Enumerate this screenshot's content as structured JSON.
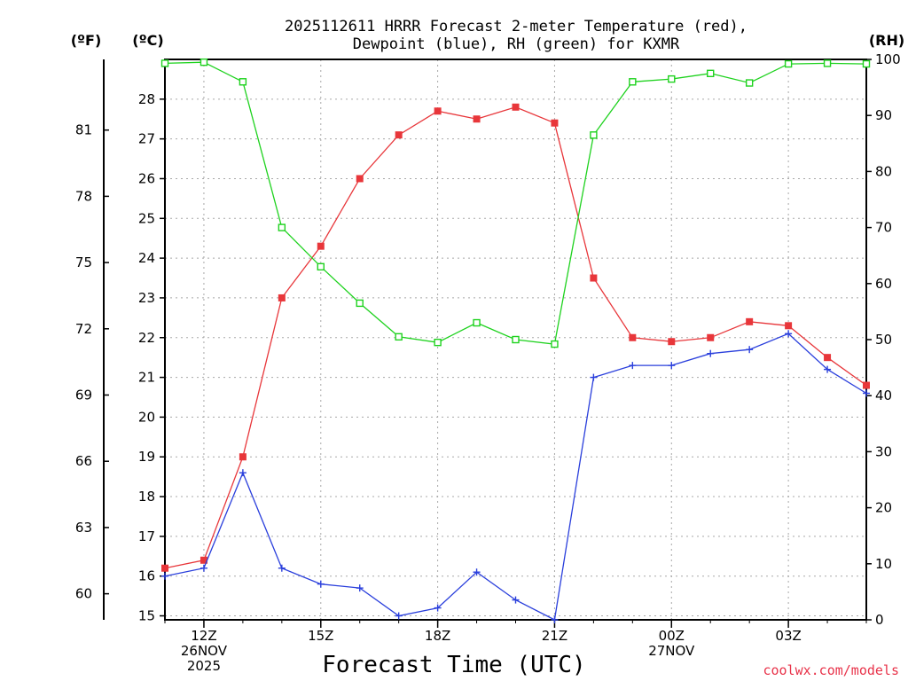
{
  "chart_data": {
    "type": "line",
    "title_line1": "2025112611 HRRR Forecast 2-meter Temperature (red),",
    "title_line2": "Dewpoint (blue), RH (green) for KXMR",
    "units": {
      "f": "(ºF)",
      "c": "(ºC)",
      "rh": "(RH)"
    },
    "xlabel": "Forecast Time (UTC)",
    "credit": "coolwx.com/models",
    "hours": [
      11,
      12,
      13,
      14,
      15,
      16,
      17,
      18,
      19,
      20,
      21,
      22,
      23,
      24,
      25,
      26,
      27,
      28,
      29
    ],
    "x_ticks": [
      {
        "hour": 12,
        "lines": [
          "12Z",
          "26NOV",
          "2025"
        ]
      },
      {
        "hour": 15,
        "lines": [
          "15Z"
        ]
      },
      {
        "hour": 18,
        "lines": [
          "18Z"
        ]
      },
      {
        "hour": 21,
        "lines": [
          "21Z"
        ]
      },
      {
        "hour": 24,
        "lines": [
          "00Z",
          "27NOV"
        ]
      },
      {
        "hour": 27,
        "lines": [
          "03Z"
        ]
      }
    ],
    "celsius_axis": {
      "min": 14.9,
      "max": 29.0,
      "ticks": [
        15,
        16,
        17,
        18,
        19,
        20,
        21,
        22,
        23,
        24,
        25,
        26,
        27,
        28
      ]
    },
    "fahrenheit_ticks": [
      60,
      63,
      66,
      69,
      72,
      75,
      78,
      81
    ],
    "rh_axis": {
      "min": 0,
      "max": 100,
      "ticks": [
        0,
        10,
        20,
        30,
        40,
        50,
        60,
        70,
        80,
        90,
        100
      ]
    },
    "series": [
      {
        "name": "Temperature",
        "color": "#e8363a",
        "axis": "c",
        "marker": "filled-square",
        "values": [
          16.2,
          16.4,
          19.0,
          23.0,
          24.3,
          26.0,
          27.1,
          27.7,
          27.5,
          27.8,
          27.4,
          23.5,
          22.0,
          21.9,
          22.0,
          22.4,
          22.3,
          21.5,
          20.8
        ]
      },
      {
        "name": "Dewpoint",
        "color": "#2a3fdc",
        "axis": "c",
        "marker": "plus",
        "values": [
          16.0,
          16.2,
          18.6,
          16.2,
          15.8,
          15.7,
          15.0,
          15.2,
          16.1,
          15.4,
          14.9,
          21.0,
          21.3,
          21.3,
          21.6,
          21.7,
          22.1,
          21.2,
          20.6
        ]
      },
      {
        "name": "RH",
        "color": "#1ed21e",
        "axis": "rh",
        "marker": "open-square",
        "values": [
          99.3,
          99.5,
          96.0,
          70.0,
          63.0,
          56.5,
          50.5,
          49.5,
          53.0,
          50.0,
          49.2,
          86.5,
          96.0,
          96.5,
          97.5,
          95.8,
          99.2,
          99.3,
          99.2
        ]
      }
    ]
  }
}
